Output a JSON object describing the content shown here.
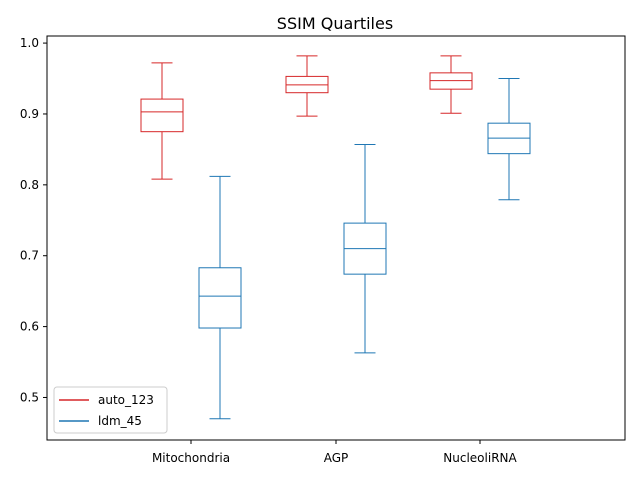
{
  "chart_data": {
    "type": "box",
    "title": "SSIM Quartiles",
    "xlabel": "",
    "ylabel": "",
    "categories": [
      "Mitochondria",
      "AGP",
      "NucleoliRNA"
    ],
    "ylim": [
      0.44,
      1.01
    ],
    "yticks": [
      0.5,
      0.6,
      0.7,
      0.8,
      0.9,
      1.0
    ],
    "ytick_labels": [
      "0.5",
      "0.6",
      "0.7",
      "0.8",
      "0.9",
      "1.0"
    ],
    "grid": false,
    "legend_position": "lower-left",
    "series": [
      {
        "name": "auto_123",
        "color": "#d62728",
        "boxes": [
          {
            "whislo": 0.808,
            "q1": 0.875,
            "med": 0.903,
            "q3": 0.921,
            "whishi": 0.972
          },
          {
            "whislo": 0.897,
            "q1": 0.93,
            "med": 0.941,
            "q3": 0.953,
            "whishi": 0.982
          },
          {
            "whislo": 0.901,
            "q1": 0.935,
            "med": 0.947,
            "q3": 0.958,
            "whishi": 0.982
          }
        ]
      },
      {
        "name": "ldm_45",
        "color": "#1f77b4",
        "boxes": [
          {
            "whislo": 0.47,
            "q1": 0.598,
            "med": 0.643,
            "q3": 0.683,
            "whishi": 0.812
          },
          {
            "whislo": 0.563,
            "q1": 0.674,
            "med": 0.71,
            "q3": 0.746,
            "whishi": 0.857
          },
          {
            "whislo": 0.779,
            "q1": 0.844,
            "med": 0.866,
            "q3": 0.887,
            "whishi": 0.95
          }
        ]
      }
    ]
  }
}
